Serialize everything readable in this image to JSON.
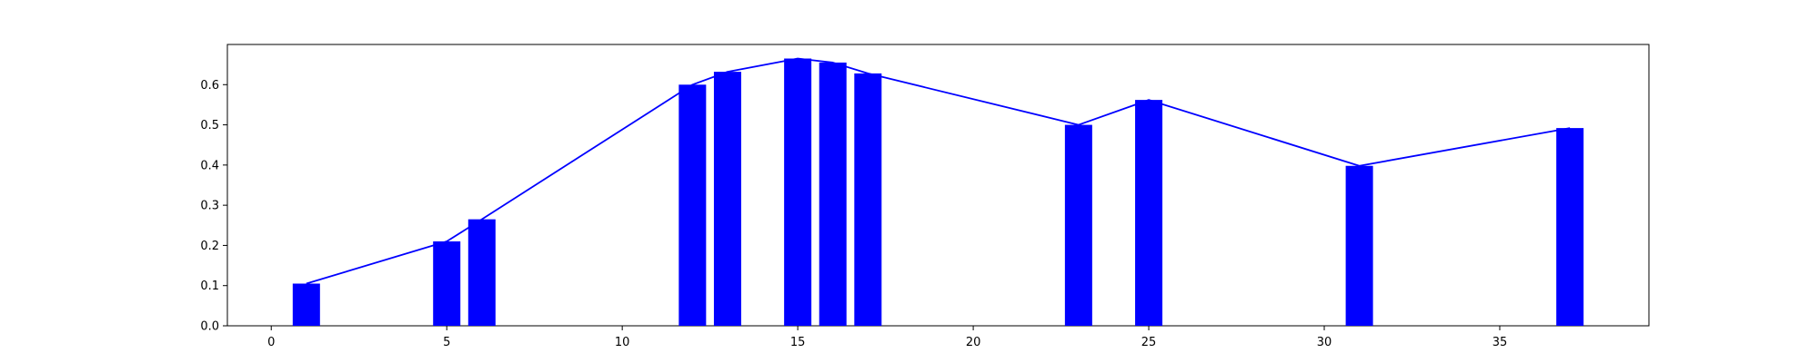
{
  "chart_data": {
    "type": "bar",
    "title": "",
    "xlabel": "",
    "ylabel": "",
    "x": [
      1,
      5,
      6,
      12,
      13,
      15,
      16,
      17,
      23,
      25,
      31,
      37
    ],
    "values": [
      0.105,
      0.21,
      0.265,
      0.6,
      0.632,
      0.665,
      0.655,
      0.628,
      0.5,
      0.562,
      0.398,
      0.492
    ],
    "overlay_line": true,
    "xlim": [
      -1.25,
      39.25
    ],
    "ylim": [
      0.0,
      0.7
    ],
    "x_ticks": [
      0,
      5,
      10,
      15,
      20,
      25,
      30,
      35
    ],
    "x_tick_labels": [
      "0",
      "5",
      "10",
      "15",
      "20",
      "25",
      "30",
      "35"
    ],
    "y_ticks": [
      0.0,
      0.1,
      0.2,
      0.3,
      0.4,
      0.5,
      0.6
    ],
    "y_tick_labels": [
      "0.0",
      "0.1",
      "0.2",
      "0.3",
      "0.4",
      "0.5",
      "0.6"
    ],
    "grid": false,
    "legend": "none",
    "colors": {
      "bar": "#0000ff",
      "line": "#0000ff",
      "axis": "#000000"
    }
  }
}
